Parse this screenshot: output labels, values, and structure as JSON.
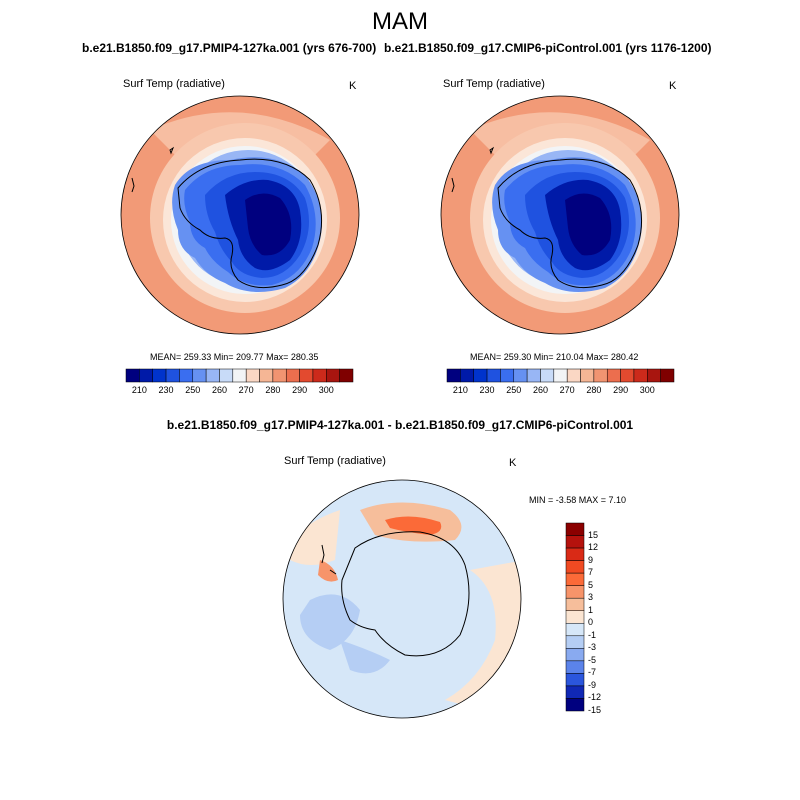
{
  "figure": {
    "title": "MAM",
    "diff_title": "b.e21.B1850.f09_g17.PMIP4-127ka.001 - b.e21.B1850.f09_g17.CMIP6-piControl.001"
  },
  "panels": [
    {
      "title": "b.e21.B1850.f09_g17.PMIP4-127ka.001 (yrs 676-700)",
      "variable": "Surf Temp (radiative)",
      "units": "K",
      "stats": "MEAN= 259.33  Min= 209.77  Max= 280.35"
    },
    {
      "title": "b.e21.B1850.f09_g17.CMIP6-piControl.001 (yrs 1176-1200)",
      "variable": "Surf Temp (radiative)",
      "units": "K",
      "stats": "MEAN= 259.30  Min= 210.04  Max= 280.42"
    },
    {
      "title": "",
      "variable": "Surf Temp (radiative)",
      "units": "K",
      "stats": "MIN =  -3.58 MAX =   7.10"
    }
  ],
  "colorbar_abs": {
    "labels": [
      "210",
      "230",
      "250",
      "260",
      "270",
      "280",
      "290",
      "300"
    ],
    "colors": [
      "#00007f",
      "#001aa8",
      "#0033cc",
      "#1f52e0",
      "#3a6ef0",
      "#6691f2",
      "#98b6f5",
      "#c8dbf8",
      "#f2f4f6",
      "#fad7c4",
      "#f5b695",
      "#f19471",
      "#ec6e4e",
      "#e34a2f",
      "#cc2a1b",
      "#a8150f",
      "#7f0000"
    ]
  },
  "colorbar_diff": {
    "labels": [
      "15",
      "12",
      "9",
      "7",
      "5",
      "3",
      "1",
      "0",
      "-1",
      "-3",
      "-5",
      "-7",
      "-9",
      "-12",
      "-15"
    ],
    "colors": [
      "#8b0000",
      "#b5120d",
      "#d92a16",
      "#f04a22",
      "#fb6a38",
      "#f7946a",
      "#f6be9b",
      "#fbe5d2",
      "#d6e7f8",
      "#b5cef4",
      "#89aaf0",
      "#5b83ea",
      "#2b56dd",
      "#1028b5",
      "#00007f"
    ]
  }
}
